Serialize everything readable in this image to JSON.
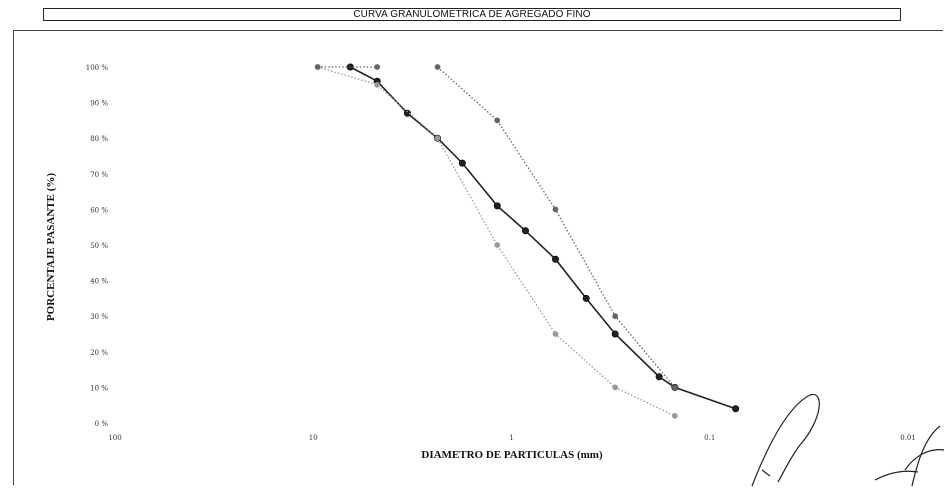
{
  "chart_data": {
    "type": "line",
    "title": "CURVA GRANULOMETRICA DE AGREGADO FINO",
    "xlabel": "DIAMETRO DE PARTICULAS (mm)",
    "ylabel": "PORCENTAJE PASANTE (%)",
    "x_scale": "log",
    "x_reversed": true,
    "xlim": [
      100,
      0.01
    ],
    "ylim": [
      0,
      100
    ],
    "x_ticks": [
      "100",
      "10",
      "1",
      "0.1",
      "0.01"
    ],
    "y_ticks": [
      "0 %",
      "10 %",
      "20 %",
      "30 %",
      "40 %",
      "50 %",
      "60 %",
      "70 %",
      "80 %",
      "90 %",
      "100 %"
    ],
    "grid": false,
    "series": [
      {
        "style": "solid",
        "color": "#222222",
        "x": [
          6.5,
          4.76,
          3.35,
          2.36,
          1.77,
          1.18,
          0.85,
          0.6,
          0.42,
          0.3,
          0.18,
          0.15,
          0.074
        ],
        "y": [
          100,
          96,
          87,
          80,
          73,
          61,
          54,
          46,
          35,
          25,
          13,
          10,
          4
        ]
      },
      {
        "style": "dotted",
        "color": "#666666",
        "x": [
          2.36,
          1.18,
          0.6,
          0.3,
          0.15
        ],
        "y": [
          100,
          85,
          60,
          30,
          10
        ]
      },
      {
        "style": "dotted",
        "color": "#999999",
        "x": [
          9.5,
          4.76,
          2.36,
          1.18,
          0.6,
          0.3,
          0.15
        ],
        "y": [
          100,
          95,
          80,
          50,
          25,
          10,
          2
        ]
      },
      {
        "style": "dotted",
        "color": "#666666",
        "x": [
          9.5,
          4.76
        ],
        "y": [
          100,
          100
        ]
      }
    ]
  }
}
